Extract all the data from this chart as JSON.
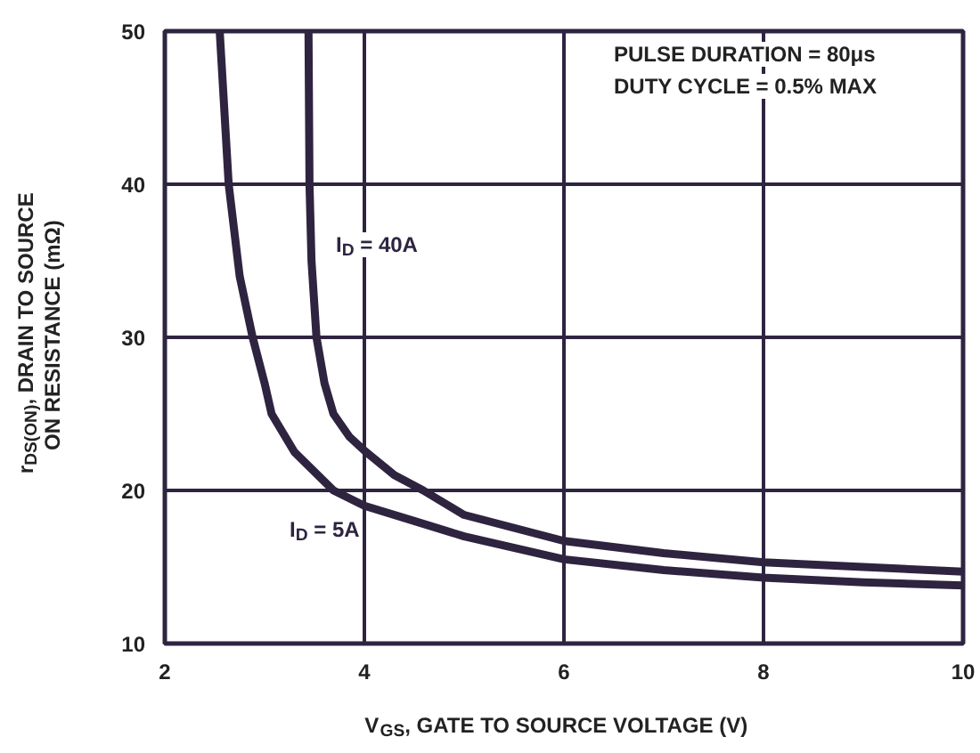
{
  "chart_data": {
    "type": "line",
    "xlabel": "V$_{GS}$, GATE TO SOURCE VOLTAGE (V)",
    "ylabel": "r$_{DS(ON)}$, DRAIN TO SOURCE\nON RESISTANCE (mΩ)",
    "xlim": [
      2,
      10
    ],
    "xticks": [
      2,
      4,
      6,
      8,
      10
    ],
    "ylim": [
      10,
      50
    ],
    "yticks": [
      10,
      20,
      30,
      40,
      50
    ],
    "grid": true,
    "marker": "none",
    "line_style": "solid",
    "series": [
      {
        "name": "I$_{D}$ = 5A",
        "color": "#2e2440",
        "x": [
          2.55,
          2.64,
          2.75,
          2.88,
          3.0,
          3.07,
          3.3,
          3.69,
          4.0,
          4.5,
          5.0,
          6.0,
          7.0,
          8.0,
          9.0,
          10.0
        ],
        "values": [
          50,
          40,
          34,
          30,
          27,
          25,
          22.5,
          20,
          19.0,
          18.0,
          17.0,
          15.5,
          14.8,
          14.3,
          14.0,
          13.8
        ]
      },
      {
        "name": "I$_{D}$ = 40A",
        "color": "#2e2440",
        "x": [
          3.44,
          3.45,
          3.47,
          3.52,
          3.6,
          3.69,
          3.85,
          4.0,
          4.3,
          4.59,
          5.0,
          6.0,
          7.0,
          8.0,
          9.0,
          10.0
        ],
        "values": [
          50,
          40,
          35,
          30,
          27,
          25,
          23.5,
          22.6,
          21.0,
          20,
          18.4,
          16.7,
          15.9,
          15.3,
          15.0,
          14.7
        ]
      }
    ],
    "annotations": [
      "PULSE DURATION = 80μs",
      "DUTY CYCLE = 0.5% MAX"
    ]
  }
}
